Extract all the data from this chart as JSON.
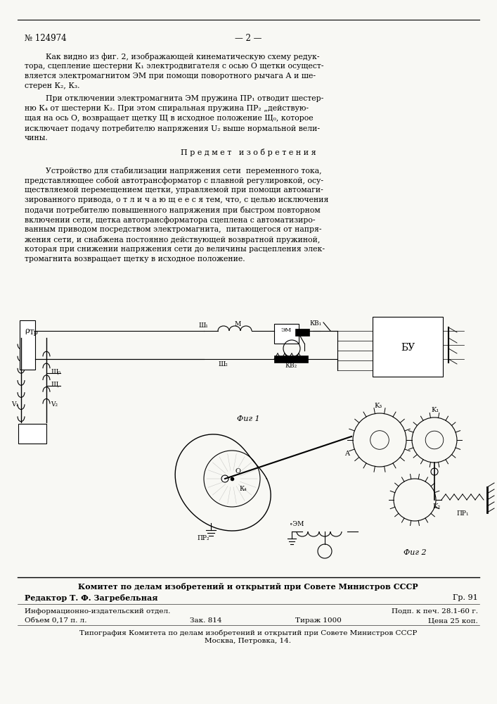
{
  "bg_color": "#f8f8f4",
  "patent_number": "№ 124974",
  "page_number": "— 2 —",
  "footer_bold": "Комитет по делам изобретений и открытий при Совете Министров СССР",
  "footer_editor": "Редактор Т. Ф. Загребельная",
  "footer_gr": "Гр. 91",
  "footer_info": "Информационно-издательский отдел.",
  "footer_volume": "Объем 0,17 п. л.",
  "footer_zak": "Зак. 814",
  "footer_tirazh": "Тираж 1000",
  "footer_podk": "Подп. к печ. 28.1-60 г.",
  "footer_cena": "Цена 25 коп.",
  "footer_tipografia": "Типография Комитета по делам изобретений и открытий при Совете Министров СССР",
  "footer_moskva": "Москва, Петровка, 14.",
  "fig1_label": "Фиг 1",
  "fig2_label": "Фиг 2"
}
